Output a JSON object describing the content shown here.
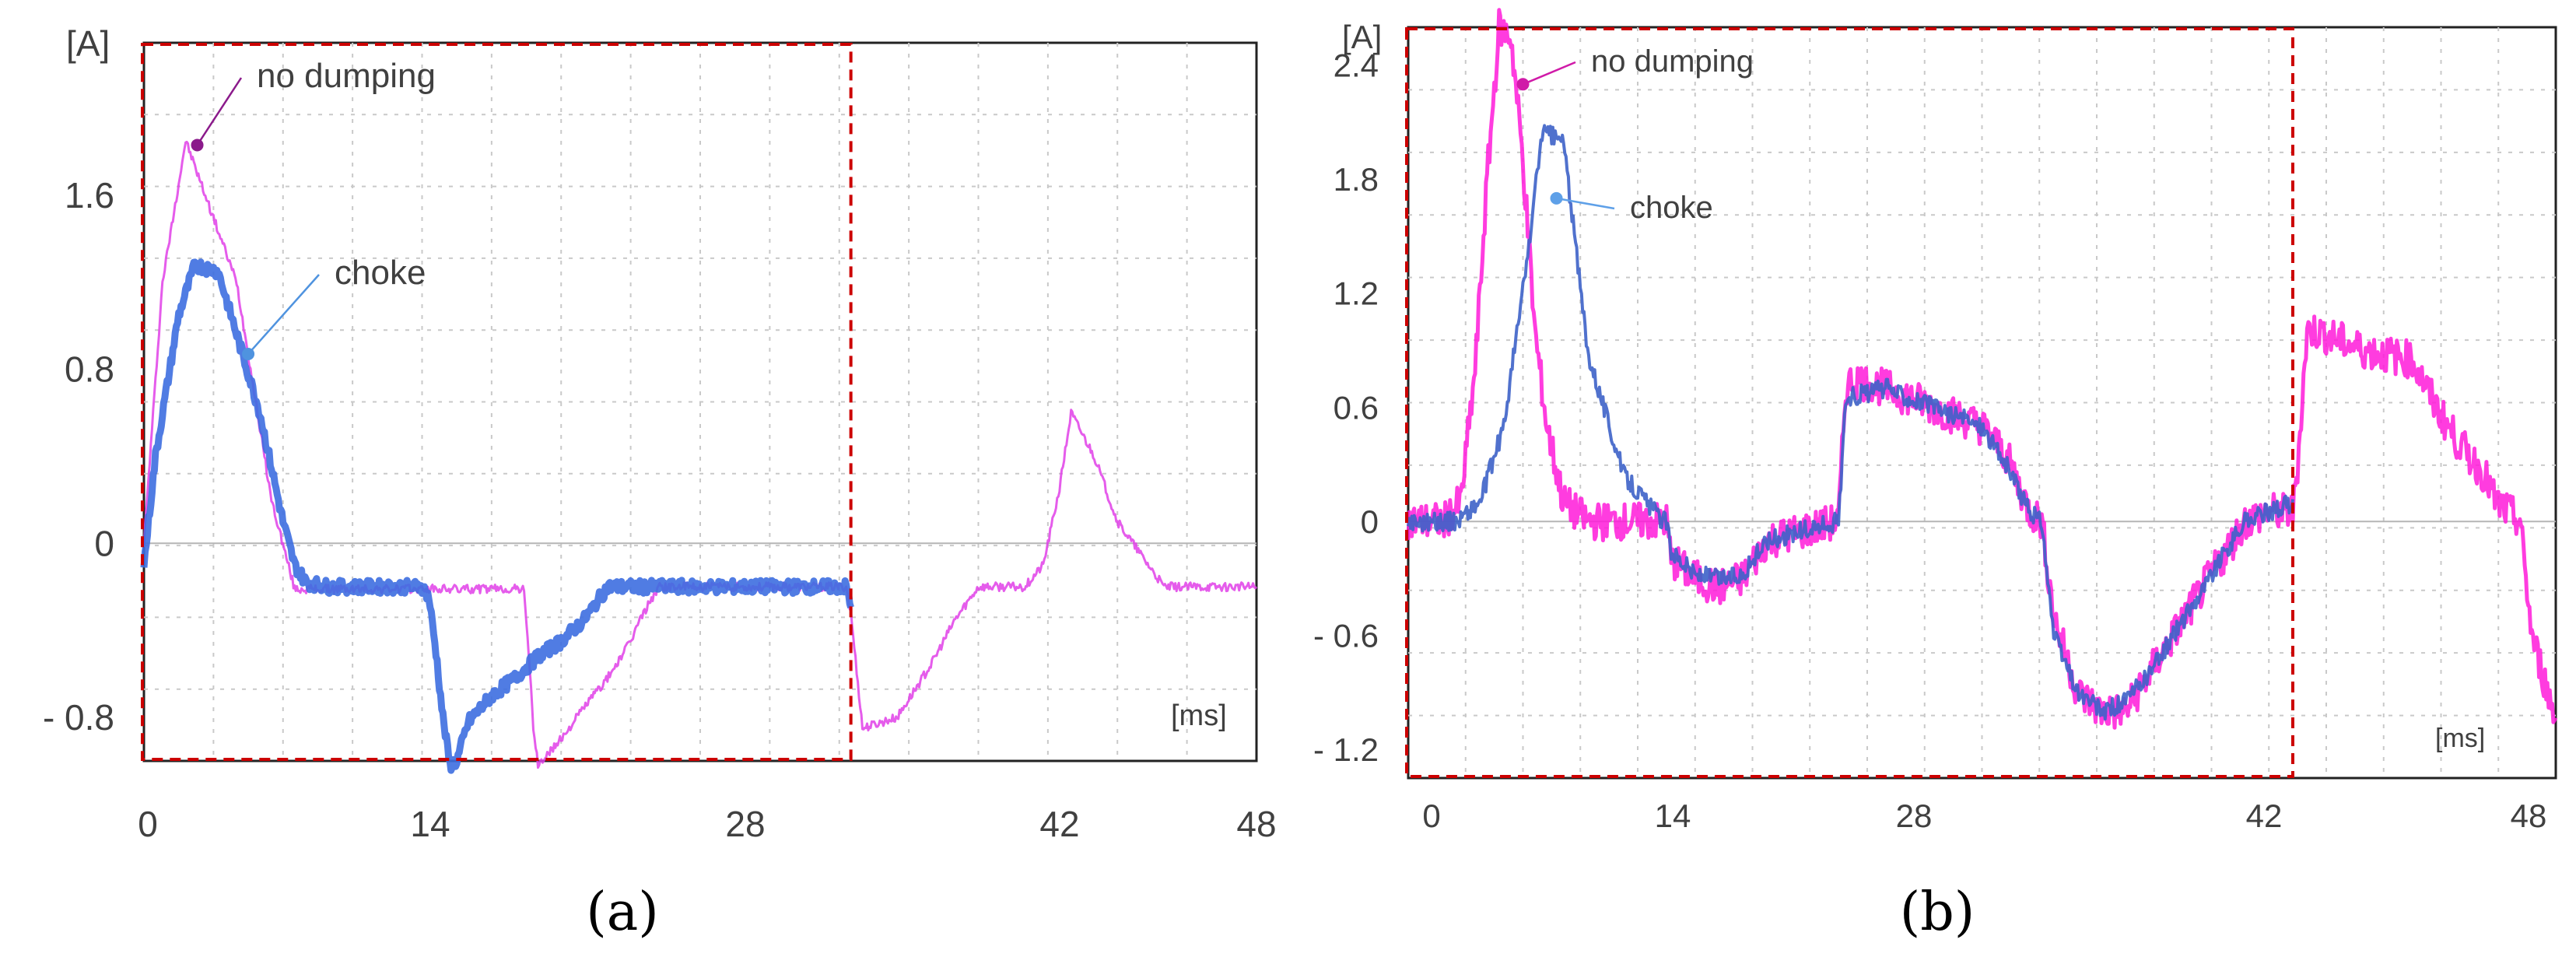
{
  "figure": {
    "caption_a": "(a)",
    "caption_b": "(b)"
  },
  "chart_data": [
    {
      "id": "a",
      "type": "line",
      "title": "",
      "ylabel": "[A]",
      "xlabel": "[ms]",
      "xlim": [
        0,
        48
      ],
      "ylim": [
        -1.0,
        2.3
      ],
      "x_ticks": [
        0,
        14,
        28,
        42,
        48
      ],
      "x_tick_labels": [
        "0",
        "14",
        "28",
        "42",
        "48"
      ],
      "y_ticks": [
        1.6,
        0.8,
        0,
        -0.8
      ],
      "y_tick_labels": [
        "1.6",
        "0.8",
        "0",
        "- 0.8"
      ],
      "grid": true,
      "highlight_window_ms": [
        0,
        30.5
      ],
      "annotations": [
        {
          "text": "no dumping",
          "series": "no dumping",
          "point": [
            2.3,
            1.83
          ]
        },
        {
          "text": "choke",
          "series": "choke",
          "point": [
            4.5,
            0.87
          ]
        }
      ],
      "series": [
        {
          "name": "no dumping",
          "color": "#e040e8",
          "noise": 0.02,
          "x": [
            0,
            0.8,
            1.8,
            4,
            5.5,
            6.5,
            16.4,
            16.6,
            16.8,
            17,
            18,
            19,
            20,
            20.6,
            21,
            21.4,
            22.2,
            23,
            24,
            26,
            26.5,
            28,
            30.3,
            30.5,
            31,
            32.5,
            34,
            35,
            36,
            37,
            37.6,
            38,
            38.8,
            39.5,
            40,
            41,
            42,
            43,
            44,
            45,
            46,
            47,
            48
          ],
          "y": [
            0,
            1.2,
            1.85,
            1.2,
            0.2,
            -0.21,
            -0.21,
            -0.5,
            -0.85,
            -1.02,
            -0.9,
            -0.75,
            -0.62,
            -0.52,
            -0.45,
            -0.35,
            -0.2,
            -0.2,
            -0.2,
            -0.2,
            -0.2,
            -0.2,
            -0.2,
            -0.32,
            -0.85,
            -0.8,
            -0.55,
            -0.35,
            -0.2,
            -0.2,
            -0.2,
            -0.2,
            -0.1,
            0.25,
            0.6,
            0.4,
            0.1,
            -0.05,
            -0.2,
            -0.2,
            -0.2,
            -0.2,
            -0.2
          ]
        },
        {
          "name": "choke",
          "color": "#3d6ee0",
          "noise": 0.03,
          "x": [
            0,
            0.5,
            1.5,
            2.2,
            3.2,
            5,
            6,
            6.5,
            7,
            8,
            12,
            12.3,
            12.6,
            12.9,
            13.2,
            13.5,
            14,
            15,
            16,
            17,
            18,
            19,
            20,
            20.5,
            21,
            21.5,
            21.9,
            22.3,
            23,
            24,
            26,
            26.5,
            28,
            30.3,
            30.5
          ],
          "y": [
            -0.1,
            0.4,
            1.05,
            1.28,
            1.25,
            0.6,
            0.1,
            -0.1,
            -0.18,
            -0.2,
            -0.2,
            -0.25,
            -0.5,
            -0.8,
            -1.02,
            -1.0,
            -0.82,
            -0.7,
            -0.62,
            -0.52,
            -0.45,
            -0.35,
            -0.2,
            -0.2,
            -0.2,
            -0.2,
            -0.2,
            -0.2,
            -0.2,
            -0.2,
            -0.2,
            -0.2,
            -0.2,
            -0.2,
            -0.3
          ]
        }
      ]
    },
    {
      "id": "b",
      "type": "line",
      "title": "",
      "ylabel": "[A]",
      "xlabel": "[ms]",
      "xlim": [
        0,
        48
      ],
      "ylim": [
        -1.35,
        2.6
      ],
      "x_ticks": [
        0,
        14,
        28,
        42,
        48
      ],
      "x_tick_labels": [
        "0",
        "14",
        "28",
        "42",
        "48"
      ],
      "y_ticks": [
        2.4,
        1.8,
        1.2,
        0.6,
        0,
        -0.6,
        -1.2
      ],
      "y_tick_labels": [
        "2.4",
        "1.8",
        "1.2",
        "0.6",
        "0",
        "- 0.6",
        "- 1.2"
      ],
      "grid": true,
      "highlight_window_ms": [
        0,
        37
      ],
      "annotations": [
        {
          "text": "no dumping",
          "series": "no dumping",
          "point": [
            4.8,
            2.3
          ]
        },
        {
          "text": "choke",
          "series": "choke",
          "point": [
            6.2,
            1.7
          ]
        }
      ],
      "series": [
        {
          "name": "no dumping",
          "color": "#ff1ad9",
          "noise": 0.1,
          "x": [
            0,
            1.5,
            2.2,
            2.8,
            3.3,
            3.8,
            4.3,
            4.8,
            5.3,
            5.8,
            6.5,
            7.5,
            9.5,
            10.8,
            11,
            12,
            13,
            14,
            15,
            18,
            18.3,
            18.6,
            20,
            22,
            24,
            25,
            26,
            26.5,
            27,
            28,
            29,
            30,
            31,
            32,
            33,
            34,
            35,
            36,
            37,
            37.2,
            37.6,
            38,
            40,
            42,
            43,
            44,
            45,
            45.5,
            46,
            46.5,
            47,
            48
          ],
          "y": [
            0,
            0,
            0.1,
            0.8,
            1.8,
            2.6,
            2.55,
            1.9,
            1.0,
            0.5,
            0.1,
            0,
            0,
            0,
            -0.2,
            -0.3,
            -0.35,
            -0.3,
            -0.1,
            0,
            0.7,
            0.75,
            0.7,
            0.6,
            0.5,
            0.35,
            0.05,
            0,
            -0.5,
            -0.9,
            -1.0,
            -1.0,
            -0.8,
            -0.6,
            -0.4,
            -0.2,
            0,
            0.05,
            0.05,
            0.3,
            1.0,
            1.0,
            0.9,
            0.85,
            0.6,
            0.4,
            0.25,
            0.1,
            0.05,
            0,
            -0.6,
            -1.05
          ]
        },
        {
          "name": "choke",
          "color": "#3d62c8",
          "noise": 0.05,
          "x": [
            0,
            2,
            3,
            4,
            5,
            5.6,
            6.5,
            7.5,
            9,
            10.5,
            10.8,
            11,
            12,
            13,
            14,
            15,
            18,
            18.3,
            20,
            22,
            24,
            25,
            26,
            26.5,
            27,
            28,
            29,
            30,
            31,
            32,
            33,
            34,
            35,
            36,
            37
          ],
          "y": [
            0,
            0,
            0.1,
            0.5,
            1.4,
            2.05,
            2.0,
            0.9,
            0.25,
            0.02,
            0,
            -0.15,
            -0.28,
            -0.3,
            -0.28,
            -0.1,
            0,
            0.65,
            0.7,
            0.6,
            0.5,
            0.3,
            0.05,
            0,
            -0.6,
            -0.9,
            -1.0,
            -0.95,
            -0.8,
            -0.6,
            -0.4,
            -0.2,
            0,
            0.05,
            0.1
          ]
        }
      ]
    }
  ]
}
